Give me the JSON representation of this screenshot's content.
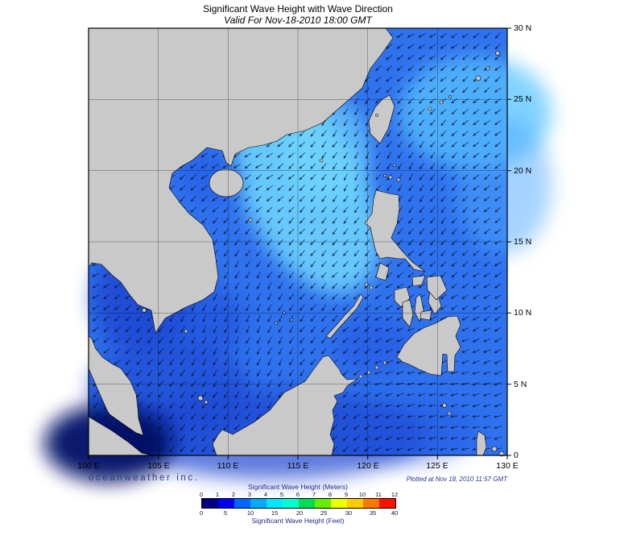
{
  "title": "Significant Wave Height with Wave Direction",
  "subtitle": "Valid For Nov-18-2010 18:00 GMT",
  "axes": {
    "x_ticks": [
      "100 E",
      "105 E",
      "110 E",
      "115 E",
      "120 E",
      "125 E",
      "130 E"
    ],
    "y_ticks": [
      "30 N",
      "25 N",
      "20 N",
      "15 N",
      "10 N",
      "5 N",
      "0"
    ]
  },
  "footer": {
    "branding": "oceanweather inc.",
    "plotted": "Plotted at Nov 18, 2010 11:57 GMT"
  },
  "legend": {
    "meters_label": "Significant Wave Height (Meters)",
    "feet_label": "Significant Wave Height (Feet)",
    "meters_ticks": [
      "0",
      "1",
      "2",
      "3",
      "4",
      "5",
      "6",
      "7",
      "8",
      "9",
      "10",
      "11",
      "12"
    ],
    "feet_ticks": [
      "0",
      "5",
      "10",
      "15",
      "20",
      "25",
      "30",
      "35",
      "40"
    ],
    "colors": [
      "#000080",
      "#0000ee",
      "#0066ff",
      "#00aaff",
      "#00e6ff",
      "#00ffcc",
      "#00dd55",
      "#66ee00",
      "#eeff00",
      "#ffcc00",
      "#ff7700",
      "#ff1100"
    ]
  },
  "map_colors": {
    "ocean_base": "#2f72ee",
    "wave_high": "#6fd8ff",
    "wave_low": "#1c45d0",
    "wave_lowest": "#000a66",
    "land": "#c9c9c9",
    "arrow": "#101028"
  }
}
